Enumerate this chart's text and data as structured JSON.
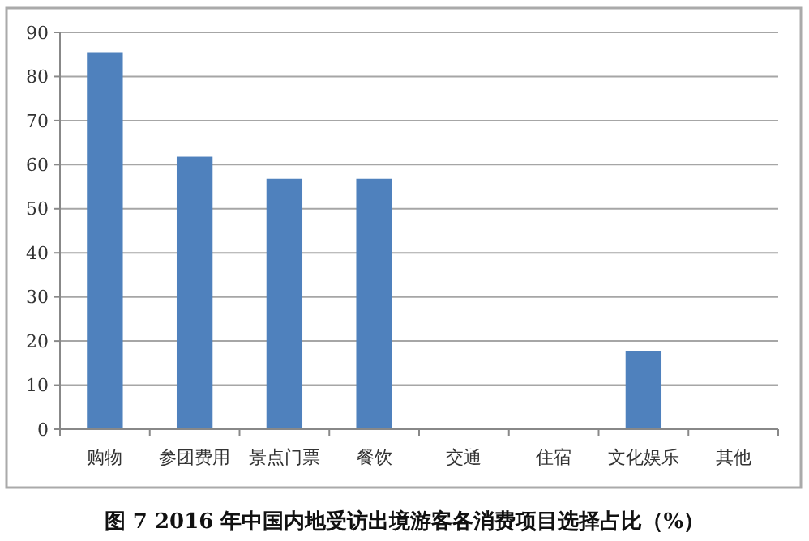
{
  "chart_data": {
    "type": "bar",
    "title": "图 7 2016 年中国内地受访出境游客各消费项目选择占比（%）",
    "categories": [
      "购物",
      "参团费用",
      "景点门票",
      "餐饮",
      "交通",
      "住宿",
      "文化娱乐",
      "其他"
    ],
    "values": [
      85.5,
      61.8,
      56.8,
      56.8,
      null,
      null,
      17.7,
      0
    ],
    "color": "#4f81bd",
    "ylim": [
      0,
      90
    ],
    "yticks": [
      0,
      10,
      20,
      30,
      40,
      50,
      60,
      70,
      80,
      90
    ],
    "grid": "y"
  }
}
